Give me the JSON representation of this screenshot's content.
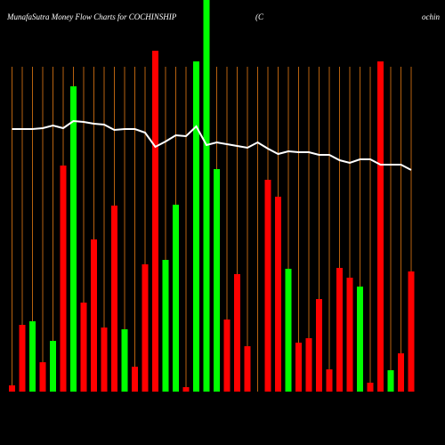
{
  "chart_data": {
    "type": "bar",
    "title": "MunafaSutra  Money Flow  Charts for COCHINSHIP",
    "title_mid": "(C",
    "title_right": "ochin",
    "values": [
      7,
      75,
      79,
      33,
      57,
      254,
      343,
      100,
      171,
      72,
      209,
      70,
      28,
      143,
      383,
      148,
      210,
      5,
      371,
      440,
      250,
      81,
      132,
      51,
      0,
      238,
      219,
      138,
      55,
      60,
      104,
      25,
      139,
      128,
      118,
      10,
      371,
      24,
      43,
      135
    ],
    "colors": [
      "#ff0000",
      "#ff0000",
      "#00ff00",
      "#ff0000",
      "#00ff00",
      "#ff0000",
      "#00ff00",
      "#ff0000",
      "#ff0000",
      "#ff0000",
      "#ff0000",
      "#00ff00",
      "#ff0000",
      "#ff0000",
      "#ff0000",
      "#00ff00",
      "#00ff00",
      "#ff0000",
      "#00ff00",
      "#00ff00",
      "#00ff00",
      "#ff0000",
      "#ff0000",
      "#ff0000",
      "#ff0000",
      "#ff0000",
      "#ff0000",
      "#00ff00",
      "#ff0000",
      "#ff0000",
      "#ff0000",
      "#ff0000",
      "#ff0000",
      "#ff0000",
      "#00ff00",
      "#ff0000",
      "#ff0000",
      "#00ff00",
      "#ff0000",
      "#ff0000"
    ],
    "line": {
      "color": "#ffffff",
      "values": [
        295,
        295,
        295,
        296,
        299,
        296,
        304,
        303,
        301,
        300,
        294,
        295,
        295,
        291,
        275,
        281,
        288,
        287,
        298,
        277,
        280,
        278,
        276,
        274,
        280,
        273,
        267,
        270,
        269,
        269,
        266,
        266,
        260,
        257,
        261,
        261,
        255,
        255,
        255,
        249
      ]
    },
    "gridline_color": "#b8620f",
    "ylim": [
      0,
      440
    ]
  }
}
